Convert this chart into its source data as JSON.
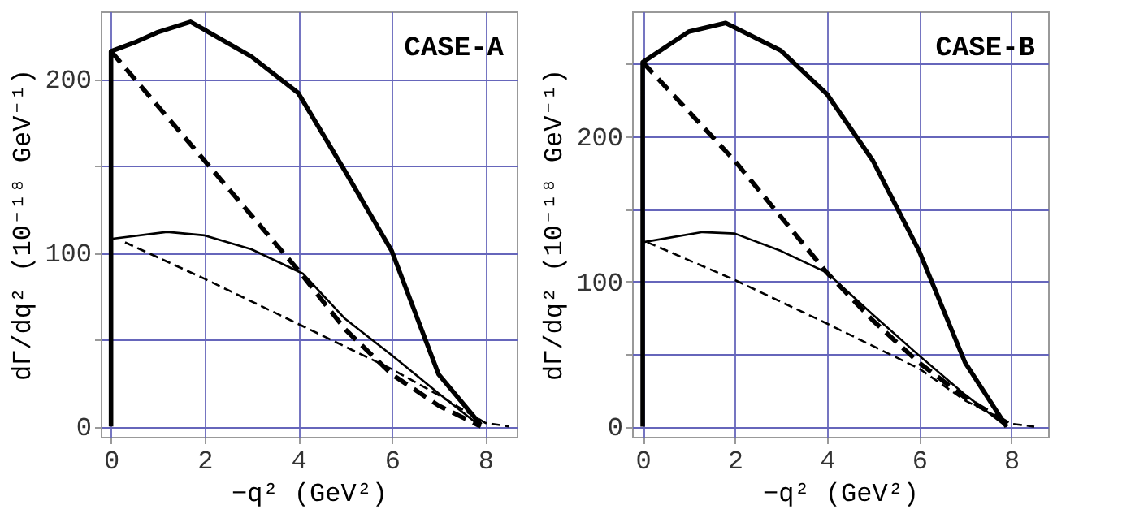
{
  "chart_data": [
    {
      "type": "line",
      "xlabel": "−q² (GeV²)",
      "ylabel": "dΓ/dq² (10⁻¹⁸ GeV⁻¹)",
      "annotations": [
        "CASE-A"
      ],
      "xlim": [
        -0.22,
        8.67
      ],
      "ylim": [
        -6,
        239
      ],
      "xticks": [
        0,
        2,
        4,
        6,
        8
      ],
      "yticks": [
        0,
        {
          "value": 50,
          "label": null
        },
        100,
        {
          "value": 150,
          "label": null
        },
        200
      ],
      "grid": true,
      "series": [
        {
          "color": "#000000",
          "line_style": "solid",
          "x": [
            0,
            0,
            0.5,
            1,
            1.7,
            3,
            4,
            5,
            6,
            7,
            7.9
          ],
          "values": [
            0,
            216,
            221,
            227,
            233,
            213,
            192,
            147,
            101,
            30,
            1
          ]
        },
        {
          "color": "#000000",
          "line_style": "dashed",
          "x": [
            0,
            2,
            4,
            5,
            6,
            7,
            7.9
          ],
          "values": [
            216,
            153,
            90,
            56,
            30,
            12,
            0
          ]
        },
        {
          "color": "#000000",
          "line_style": "solid",
          "x": [
            0,
            1.2,
            2,
            3,
            4.1,
            5,
            6,
            7,
            7.9
          ],
          "values": [
            108,
            112,
            110,
            102,
            88,
            62,
            41,
            19,
            0
          ]
        },
        {
          "color": "#000000",
          "line_style": "dashed",
          "x": [
            0.3,
            2,
            4,
            6,
            7,
            8,
            8.5
          ],
          "values": [
            106,
            85,
            59,
            33,
            18,
            2,
            0
          ]
        }
      ]
    },
    {
      "type": "line",
      "xlabel": "−q² (GeV²)",
      "ylabel": "dΓ/dq² (10⁻¹⁸ GeV⁻¹)",
      "annotations": [
        "CASE-B"
      ],
      "xlim": [
        -0.23,
        8.8
      ],
      "ylim": [
        -7,
        286
      ],
      "xticks": [
        0,
        2,
        4,
        6,
        8
      ],
      "yticks": [
        0,
        {
          "value": 50,
          "label": null
        },
        100,
        {
          "value": 150,
          "label": null
        },
        200,
        {
          "value": 250,
          "label": null
        }
      ],
      "grid": true,
      "series": [
        {
          "color": "#000000",
          "line_style": "solid",
          "x": [
            0,
            0,
            1,
            1.8,
            3,
            4,
            5,
            6,
            7,
            7.9
          ],
          "values": [
            0,
            251,
            272,
            278,
            259,
            229,
            183,
            121,
            44,
            0
          ]
        },
        {
          "color": "#000000",
          "line_style": "dashed",
          "x": [
            0,
            2,
            4,
            5,
            6,
            7,
            8
          ],
          "values": [
            251,
            183,
            106,
            73,
            44,
            20,
            1
          ]
        },
        {
          "color": "#000000",
          "line_style": "solid",
          "x": [
            0,
            1.3,
            2,
            3,
            4,
            5,
            6,
            7,
            7.9
          ],
          "values": [
            127,
            134,
            133,
            121,
            106,
            77,
            49,
            22,
            0
          ]
        },
        {
          "color": "#000000",
          "line_style": "dashed",
          "x": [
            0.1,
            2,
            4,
            6,
            7,
            8,
            8.5
          ],
          "values": [
            127,
            101,
            71,
            40,
            18,
            2,
            0
          ]
        }
      ]
    }
  ]
}
